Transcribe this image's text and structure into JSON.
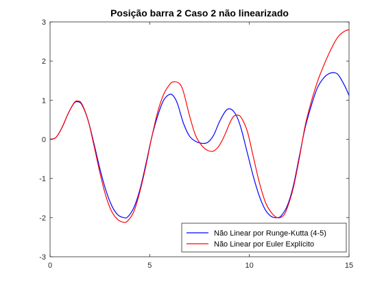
{
  "chart_data": {
    "type": "line",
    "title": "Posição barra 2 Caso 2 não linearizado",
    "xlabel": "",
    "ylabel": "",
    "xlim": [
      0,
      15
    ],
    "ylim": [
      -3,
      3
    ],
    "xticks": [
      0,
      5,
      10,
      15
    ],
    "yticks": [
      -3,
      -2,
      -1,
      0,
      1,
      2,
      3
    ],
    "grid": false,
    "legend_position": "bottom-right",
    "series": [
      {
        "name": "Não Linear por Runge-Kutta (4-5)",
        "color": "#0000ff",
        "x": [
          0,
          0.3,
          0.6,
          0.9,
          1.2,
          1.4,
          1.6,
          1.9,
          2.2,
          2.5,
          2.8,
          3.1,
          3.4,
          3.7,
          3.9,
          4.2,
          4.5,
          4.8,
          5.1,
          5.4,
          5.7,
          6.0,
          6.2,
          6.4,
          6.7,
          7.0,
          7.3,
          7.6,
          7.9,
          8.2,
          8.5,
          8.8,
          9.0,
          9.2,
          9.4,
          9.6,
          9.9,
          10.2,
          10.5,
          10.8,
          11.1,
          11.4,
          11.6,
          11.9,
          12.2,
          12.5,
          12.8,
          13.1,
          13.4,
          13.7,
          14.0,
          14.3,
          14.5,
          14.8,
          15.0
        ],
        "y": [
          0,
          0.05,
          0.3,
          0.65,
          0.92,
          0.96,
          0.88,
          0.5,
          -0.1,
          -0.75,
          -1.3,
          -1.7,
          -1.93,
          -2.0,
          -1.98,
          -1.75,
          -1.3,
          -0.65,
          0.05,
          0.6,
          1.0,
          1.15,
          1.1,
          0.9,
          0.4,
          0.08,
          -0.05,
          -0.1,
          -0.08,
          0.1,
          0.45,
          0.72,
          0.78,
          0.72,
          0.55,
          0.25,
          -0.35,
          -0.95,
          -1.45,
          -1.8,
          -1.97,
          -2.0,
          -1.95,
          -1.7,
          -1.2,
          -0.45,
          0.3,
          0.85,
          1.3,
          1.55,
          1.68,
          1.7,
          1.62,
          1.35,
          1.12
        ]
      },
      {
        "name": "Não Linear por Euler Explícito",
        "color": "#ff0000",
        "x": [
          0,
          0.3,
          0.6,
          0.9,
          1.2,
          1.4,
          1.6,
          1.9,
          2.2,
          2.5,
          2.8,
          3.1,
          3.4,
          3.7,
          3.9,
          4.2,
          4.5,
          4.8,
          5.1,
          5.4,
          5.7,
          6.0,
          6.2,
          6.5,
          6.7,
          7.0,
          7.3,
          7.6,
          7.9,
          8.2,
          8.5,
          8.8,
          9.0,
          9.2,
          9.4,
          9.6,
          9.9,
          10.2,
          10.5,
          10.8,
          11.1,
          11.4,
          11.7,
          11.9,
          12.2,
          12.5,
          12.8,
          13.1,
          13.4,
          13.7,
          14.0,
          14.3,
          14.5,
          14.8,
          15.0
        ],
        "y": [
          0,
          0.05,
          0.3,
          0.65,
          0.93,
          0.98,
          0.9,
          0.5,
          -0.15,
          -0.85,
          -1.45,
          -1.85,
          -2.05,
          -2.12,
          -2.08,
          -1.85,
          -1.35,
          -0.7,
          0.05,
          0.7,
          1.15,
          1.4,
          1.47,
          1.42,
          1.2,
          0.6,
          0.1,
          -0.15,
          -0.28,
          -0.3,
          -0.15,
          0.15,
          0.4,
          0.58,
          0.62,
          0.55,
          0.2,
          -0.45,
          -1.1,
          -1.6,
          -1.87,
          -2.0,
          -1.95,
          -1.75,
          -1.25,
          -0.5,
          0.35,
          0.95,
          1.45,
          1.85,
          2.2,
          2.5,
          2.65,
          2.77,
          2.8
        ]
      }
    ]
  }
}
